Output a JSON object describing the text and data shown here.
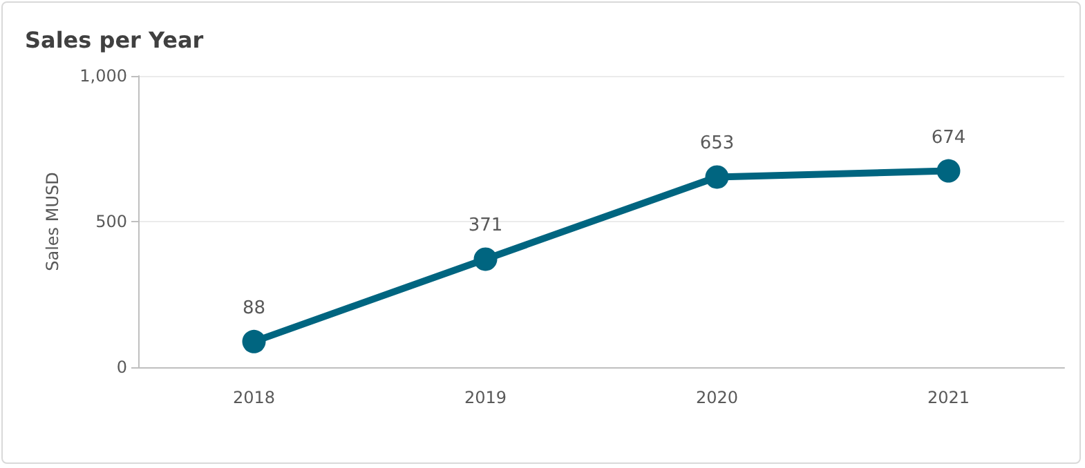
{
  "chart_data": {
    "type": "line",
    "title": "Sales per Year",
    "ylabel": "Sales MUSD",
    "categories": [
      "2018",
      "2019",
      "2020",
      "2021"
    ],
    "series": [
      {
        "color": "#006580",
        "values": [
          88,
          371,
          653,
          674
        ]
      }
    ],
    "ylim": [
      0,
      1000
    ],
    "yticks": [
      0,
      500,
      {
        "value": 1000,
        "label": "1,000"
      }
    ],
    "grid": "y",
    "marker": "circle",
    "line_style": "solid",
    "data_labels": true
  }
}
